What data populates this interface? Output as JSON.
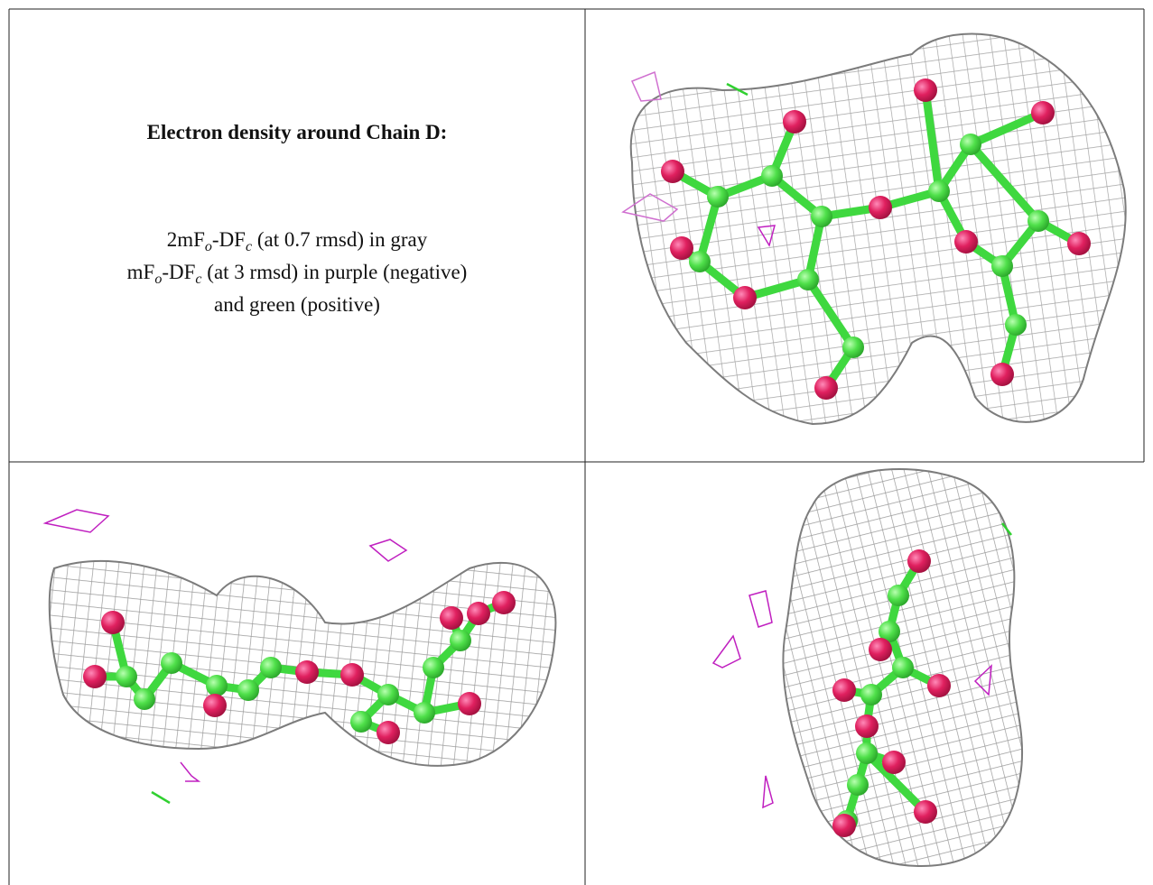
{
  "cell": {
    "title": "Electron density around Chain D:",
    "lines": [
      [
        "2mF",
        "o",
        "-DF",
        "c",
        " (at 0.7 rmsd) in gray"
      ],
      [
        "mF",
        "o",
        "-DF",
        "c",
        " (at 3 rmsd) in purple (negative)"
      ],
      [
        "and green (positive)"
      ]
    ]
  }
}
